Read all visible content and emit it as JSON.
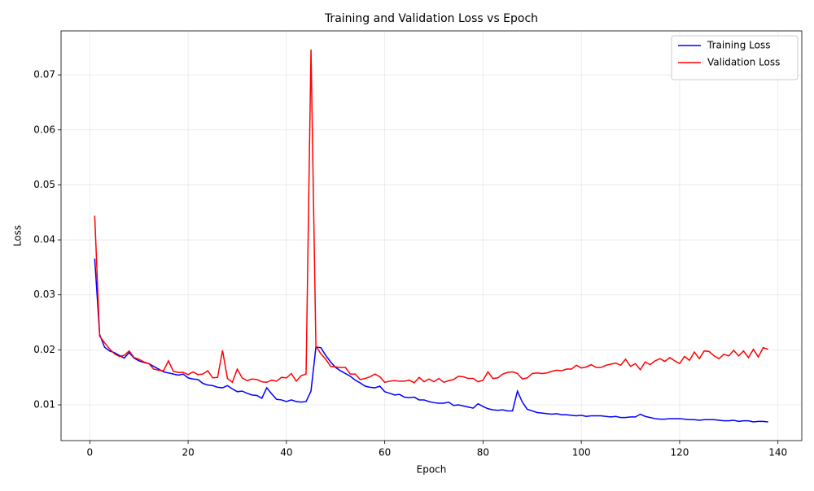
{
  "chart_data": {
    "type": "line",
    "title": "Training and Validation Loss vs Epoch",
    "x_label": "Epoch",
    "y_label": "Loss",
    "x": [
      1,
      2,
      3,
      4,
      5,
      6,
      7,
      8,
      9,
      10,
      11,
      12,
      13,
      14,
      15,
      16,
      17,
      18,
      19,
      20,
      21,
      22,
      23,
      24,
      25,
      26,
      27,
      28,
      29,
      30,
      31,
      32,
      33,
      34,
      35,
      36,
      37,
      38,
      39,
      40,
      41,
      42,
      43,
      44,
      45,
      46,
      47,
      48,
      49,
      50,
      51,
      52,
      53,
      54,
      55,
      56,
      57,
      58,
      59,
      60,
      61,
      62,
      63,
      64,
      65,
      66,
      67,
      68,
      69,
      70,
      71,
      72,
      73,
      74,
      75,
      76,
      77,
      78,
      79,
      80,
      81,
      82,
      83,
      84,
      85,
      86,
      87,
      88,
      89,
      90,
      91,
      92,
      93,
      94,
      95,
      96,
      97,
      98,
      99,
      100,
      101,
      102,
      103,
      104,
      105,
      106,
      107,
      108,
      109,
      110,
      111,
      112,
      113,
      114,
      115,
      116,
      117,
      118,
      119,
      120,
      121,
      122,
      123,
      124,
      125,
      126,
      127,
      128,
      129,
      130,
      131,
      132,
      133,
      134,
      135,
      136,
      137,
      138
    ],
    "series": [
      {
        "name": "Training Loss",
        "color": "#0000ff",
        "values": [
          0.0366,
          0.0228,
          0.0205,
          0.0198,
          0.0195,
          0.019,
          0.0185,
          0.0195,
          0.0185,
          0.018,
          0.0177,
          0.0175,
          0.017,
          0.0165,
          0.016,
          0.0158,
          0.0156,
          0.0154,
          0.0156,
          0.0149,
          0.0147,
          0.0146,
          0.0139,
          0.0136,
          0.0135,
          0.0132,
          0.0131,
          0.0135,
          0.0129,
          0.0124,
          0.0125,
          0.0121,
          0.0118,
          0.0117,
          0.0112,
          0.0131,
          0.012,
          0.011,
          0.0109,
          0.0106,
          0.0109,
          0.0106,
          0.0105,
          0.0106,
          0.0125,
          0.0205,
          0.0204,
          0.019,
          0.0178,
          0.0168,
          0.0162,
          0.0157,
          0.0152,
          0.0145,
          0.014,
          0.0134,
          0.0132,
          0.0131,
          0.0134,
          0.0124,
          0.0121,
          0.0118,
          0.0119,
          0.0114,
          0.0113,
          0.0114,
          0.0109,
          0.0109,
          0.0106,
          0.0104,
          0.0103,
          0.0103,
          0.0105,
          0.0099,
          0.01,
          0.0098,
          0.0096,
          0.0094,
          0.0102,
          0.0097,
          0.0093,
          0.0091,
          0.009,
          0.0091,
          0.0089,
          0.0089,
          0.0125,
          0.0105,
          0.0092,
          0.0089,
          0.0086,
          0.0085,
          0.0084,
          0.0083,
          0.0084,
          0.0082,
          0.0082,
          0.0081,
          0.008,
          0.0081,
          0.0079,
          0.008,
          0.008,
          0.008,
          0.0079,
          0.0078,
          0.0079,
          0.0077,
          0.0077,
          0.0078,
          0.0078,
          0.0083,
          0.0079,
          0.0077,
          0.0075,
          0.0074,
          0.0074,
          0.0075,
          0.0075,
          0.0075,
          0.0074,
          0.0073,
          0.0073,
          0.0072,
          0.0073,
          0.0073,
          0.0073,
          0.0072,
          0.0071,
          0.0071,
          0.0072,
          0.007,
          0.0071,
          0.0071,
          0.0069,
          0.007,
          0.007,
          0.0069
        ]
      },
      {
        "name": "Validation Loss",
        "color": "#ff0000",
        "values": [
          0.0444,
          0.0225,
          0.0213,
          0.0202,
          0.0193,
          0.0188,
          0.019,
          0.0198,
          0.0186,
          0.0183,
          0.0178,
          0.0175,
          0.0165,
          0.0163,
          0.0162,
          0.018,
          0.0161,
          0.0159,
          0.0159,
          0.0155,
          0.016,
          0.0155,
          0.0156,
          0.0162,
          0.0149,
          0.015,
          0.0199,
          0.0148,
          0.0141,
          0.0165,
          0.0149,
          0.0144,
          0.0147,
          0.0146,
          0.0142,
          0.0141,
          0.0145,
          0.0143,
          0.015,
          0.0149,
          0.0157,
          0.0143,
          0.0153,
          0.0156,
          0.0746,
          0.0207,
          0.0193,
          0.0183,
          0.017,
          0.0169,
          0.0168,
          0.0168,
          0.0156,
          0.0156,
          0.0146,
          0.0148,
          0.0151,
          0.0156,
          0.0151,
          0.0141,
          0.0143,
          0.0144,
          0.0143,
          0.0143,
          0.0145,
          0.014,
          0.015,
          0.0142,
          0.0147,
          0.0142,
          0.0148,
          0.0141,
          0.0144,
          0.0146,
          0.0152,
          0.0151,
          0.0148,
          0.0148,
          0.0142,
          0.0145,
          0.016,
          0.0148,
          0.0149,
          0.0156,
          0.0159,
          0.016,
          0.0157,
          0.0147,
          0.0149,
          0.0157,
          0.0158,
          0.0157,
          0.0158,
          0.0161,
          0.0163,
          0.0162,
          0.0165,
          0.0165,
          0.0172,
          0.0167,
          0.0169,
          0.0173,
          0.0168,
          0.0168,
          0.0172,
          0.0174,
          0.0176,
          0.0172,
          0.0183,
          0.017,
          0.0175,
          0.0164,
          0.0178,
          0.0173,
          0.018,
          0.0184,
          0.0179,
          0.0186,
          0.018,
          0.0175,
          0.0188,
          0.0181,
          0.0196,
          0.0184,
          0.0198,
          0.0197,
          0.0189,
          0.0184,
          0.0192,
          0.0189,
          0.0199,
          0.0189,
          0.0198,
          0.0186,
          0.0201,
          0.0187,
          0.0204,
          0.0201
        ]
      }
    ],
    "xlim": [
      -5.85,
      144.85
    ],
    "ylim": [
      0.0035,
      0.078
    ],
    "xticks": [
      0,
      20,
      40,
      60,
      80,
      100,
      120,
      140
    ],
    "yticks": [
      0.01,
      0.02,
      0.03,
      0.04,
      0.05,
      0.06,
      0.07
    ],
    "grid": true,
    "legend": "upper-right"
  }
}
